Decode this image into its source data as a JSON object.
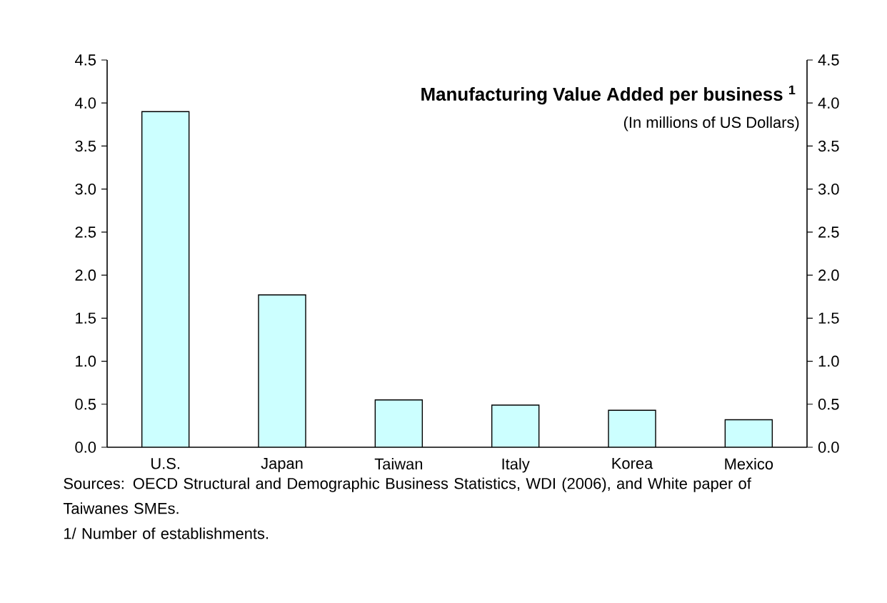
{
  "chart_data": {
    "type": "bar",
    "title": "Manufacturing Value Added per business $^{1}$",
    "subtitle": "(In millions of US Dollars)",
    "categories": [
      "U.S.",
      "Japan",
      "Taiwan",
      "Italy",
      "Korea",
      "Mexico"
    ],
    "values": [
      3.9,
      1.77,
      0.55,
      0.49,
      0.43,
      0.32
    ],
    "color": "#ccffff",
    "ylim": [
      0,
      4.5
    ],
    "yticks": [
      {
        "value": 0,
        "label": "0.0"
      },
      {
        "value": 0.5,
        "label": "0.5"
      },
      {
        "value": 1,
        "label": "1.0"
      },
      {
        "value": 1.5,
        "label": "1.5"
      },
      {
        "value": 2,
        "label": "2.0"
      },
      {
        "value": 2.5,
        "label": "2.5"
      },
      {
        "value": 3,
        "label": "3.0"
      },
      {
        "value": 3.5,
        "label": "3.5"
      },
      {
        "value": 4,
        "label": "4.0"
      },
      {
        "value": 4.5,
        "label": "4.5"
      }
    ],
    "y2lim": [
      0,
      4.5
    ],
    "y2ticks": [
      {
        "value": 0,
        "label": "0.0"
      },
      {
        "value": 0.5,
        "label": "0.5"
      },
      {
        "value": 1,
        "label": "1.0"
      },
      {
        "value": 1.5,
        "label": "1.5"
      },
      {
        "value": 2,
        "label": "2.0"
      },
      {
        "value": 2.5,
        "label": "2.5"
      },
      {
        "value": 3,
        "label": "3.0"
      },
      {
        "value": 3.5,
        "label": "3.5"
      },
      {
        "value": 4,
        "label": "4.0"
      },
      {
        "value": 4.5,
        "label": "4.5"
      }
    ],
    "grid": false,
    "annotations": [
      "Sources: OECD Structural and Demographic Business Statistics, WDI (2006), and White paper of Taiwanes SMEs.",
      "1/ Number of establishments."
    ]
  }
}
